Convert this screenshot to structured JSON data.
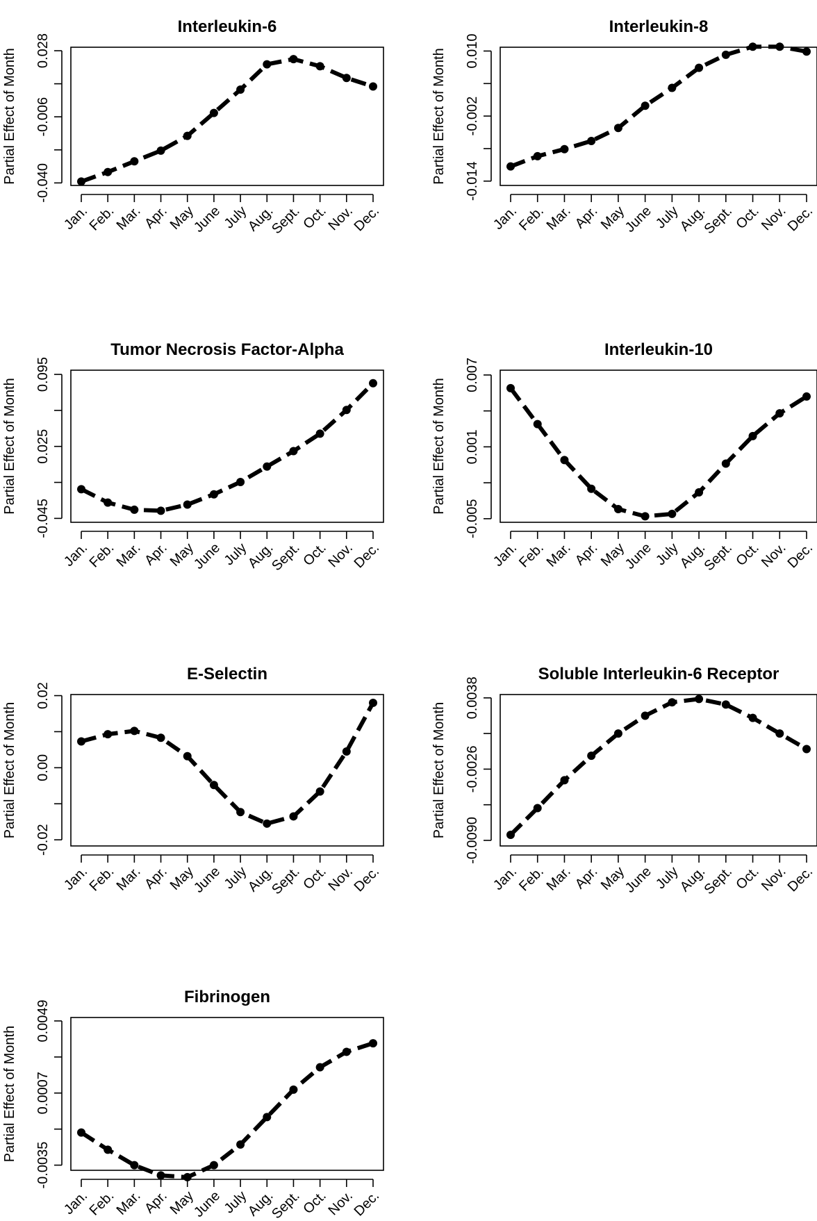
{
  "chart_data": [
    {
      "type": "line",
      "title": "Interleukin-6",
      "ylabel": "Partial Effect of Month",
      "categories": [
        "Jan.",
        "Feb.",
        "Mar.",
        "Apr.",
        "May",
        "June",
        "July",
        "Aug.",
        "Sept.",
        "Oct.",
        "Nov.",
        "Dec."
      ],
      "yticks": [
        "-0.040",
        "-0.006",
        "0.028"
      ],
      "yticks_shown": [
        -0.04,
        -0.023,
        -0.006,
        0.011,
        0.028
      ],
      "ylim": [
        -0.0413,
        0.0298
      ],
      "values": [
        -0.0393,
        -0.0344,
        -0.0289,
        -0.0234,
        -0.0158,
        -0.004,
        0.008,
        0.021,
        0.0237,
        0.02,
        0.014,
        0.0096
      ]
    },
    {
      "type": "line",
      "title": "Interleukin-8",
      "ylabel": "Partial Effect of Month",
      "categories": [
        "Jan.",
        "Feb.",
        "Mar.",
        "Apr.",
        "May",
        "June",
        "July",
        "Aug.",
        "Sept.",
        "Oct.",
        "Nov.",
        "Dec."
      ],
      "yticks": [
        "-0.014",
        "-0.002",
        "0.010"
      ],
      "yticks_shown": [
        -0.014,
        -0.008,
        -0.002,
        0.004,
        0.01
      ],
      "ylim": [
        -0.0148,
        0.0107
      ],
      "values": [
        -0.0113,
        -0.0094,
        -0.0081,
        -0.0066,
        -0.0042,
        -0.0001,
        0.0032,
        0.0069,
        0.0093,
        0.0108,
        0.0108,
        0.0099
      ]
    },
    {
      "type": "line",
      "title": "Tumor Necrosis Factor-Alpha",
      "ylabel": "Partial Effect of Month",
      "categories": [
        "Jan.",
        "Feb.",
        "Mar.",
        "Apr.",
        "May",
        "June",
        "July",
        "Aug.",
        "Sept.",
        "Oct.",
        "Nov.",
        "Dec."
      ],
      "yticks": [
        "-0.045",
        "0.025",
        "0.095"
      ],
      "yticks_shown": [
        -0.045,
        -0.01,
        0.025,
        0.06,
        0.095
      ],
      "ylim": [
        -0.0488,
        0.0991
      ],
      "values": [
        -0.0166,
        -0.0296,
        -0.0366,
        -0.0376,
        -0.0316,
        -0.0216,
        -0.0096,
        0.0054,
        0.0204,
        0.0374,
        0.0604,
        0.0864
      ]
    },
    {
      "type": "line",
      "title": "Interleukin-10",
      "ylabel": "Partial Effect of Month",
      "categories": [
        "Jan.",
        "Feb.",
        "Mar.",
        "Apr.",
        "May",
        "June",
        "July",
        "Aug.",
        "Sept.",
        "Oct.",
        "Nov.",
        "Dec."
      ],
      "yticks": [
        "-0.005",
        "0.001",
        "0.007"
      ],
      "yticks_shown": [
        -0.005,
        -0.002,
        0.001,
        0.004,
        0.007
      ],
      "ylim": [
        -0.0053,
        0.0074
      ],
      "values": [
        0.0059,
        0.0029,
        -0.0001,
        -0.0025,
        -0.0042,
        -0.0048,
        -0.0046,
        -0.0028,
        -0.0004,
        0.0019,
        0.0038,
        0.0052
      ]
    },
    {
      "type": "line",
      "title": "E-Selectin",
      "ylabel": "Partial Effect of Month",
      "categories": [
        "Jan.",
        "Feb.",
        "Mar.",
        "Apr.",
        "May",
        "June",
        "July",
        "Aug.",
        "Sept.",
        "Oct.",
        "Nov.",
        "Dec."
      ],
      "yticks": [
        "-0.02",
        "0.00",
        "0.02"
      ],
      "yticks_shown": [
        -0.02,
        -0.01,
        0.0,
        0.01,
        0.02
      ],
      "ylim": [
        -0.0217,
        0.0203
      ],
      "values": [
        0.0073,
        0.0093,
        0.0102,
        0.0083,
        0.0032,
        -0.0048,
        -0.0123,
        -0.0155,
        -0.0135,
        -0.0066,
        0.0045,
        0.018
      ]
    },
    {
      "type": "line",
      "title": "Soluble Interleukin-6 Receptor",
      "ylabel": "Partial Effect of Month",
      "categories": [
        "Jan.",
        "Feb.",
        "Mar.",
        "Apr.",
        "May",
        "June",
        "July",
        "Aug.",
        "Sept.",
        "Oct.",
        "Nov.",
        "Dec."
      ],
      "yticks": [
        "-0.0090",
        "-0.0026",
        "0.0038"
      ],
      "yticks_shown": [
        -0.009,
        -0.0058,
        -0.0026,
        0.0006,
        0.0038
      ],
      "ylim": [
        -0.0095,
        0.0041
      ],
      "values": [
        -0.0085,
        -0.0061,
        -0.0036,
        -0.0014,
        0.0006,
        0.0022,
        0.0034,
        0.0037,
        0.0032,
        0.002,
        0.0006,
        -0.0008
      ]
    },
    {
      "type": "line",
      "title": "Fibrinogen",
      "ylabel": "Partial Effect of Month",
      "categories": [
        "Jan.",
        "Feb.",
        "Mar.",
        "Apr.",
        "May",
        "June",
        "July",
        "Aug.",
        "Sept.",
        "Oct.",
        "Nov.",
        "Dec."
      ],
      "yticks": [
        "-0.0035",
        "0.0007",
        "0.0049"
      ],
      "yticks_shown": [
        -0.0035,
        -0.0014,
        0.0007,
        0.0028,
        0.0049
      ],
      "ylim": [
        -0.0038,
        0.0051
      ],
      "values": [
        -0.0016,
        -0.0026,
        -0.0035,
        -0.0041,
        -0.0042,
        -0.0035,
        -0.0023,
        -0.0007,
        0.0009,
        0.0022,
        0.0031,
        0.0036
      ]
    }
  ]
}
